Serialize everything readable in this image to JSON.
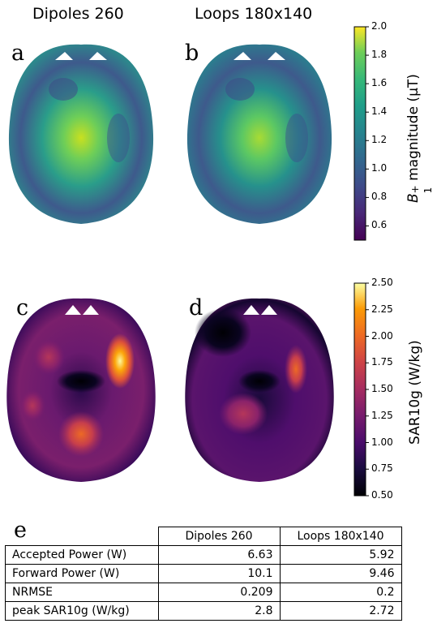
{
  "columns": [
    "Dipoles 260",
    "Loops 180x140"
  ],
  "panel_letters": [
    "a",
    "b",
    "c",
    "d",
    "e"
  ],
  "colorbars": {
    "b1": {
      "label_prefix": "B",
      "label_sub": "1",
      "label_sup": "+",
      "label_suffix": " magnitude (µT)",
      "ticks": [
        "2.0",
        "1.8",
        "1.6",
        "1.4",
        "1.2",
        "1.0",
        "0.8",
        "0.6"
      ],
      "colormap": "viridis",
      "range": [
        0.5,
        2.0
      ]
    },
    "sar": {
      "label": "SAR10g (W/kg)",
      "ticks": [
        "2.50",
        "2.25",
        "2.00",
        "1.75",
        "1.50",
        "1.25",
        "1.00",
        "0.75",
        "0.50"
      ],
      "colormap": "inferno",
      "range": [
        0.5,
        2.5
      ]
    }
  },
  "table": {
    "headers": [
      "Dipoles 260",
      "Loops 180x140"
    ],
    "rows": [
      {
        "label": "Accepted Power (W)",
        "v1": "6.63",
        "v2": "5.92"
      },
      {
        "label": "Forward Power (W)",
        "v1": "10.1",
        "v2": "9.46"
      },
      {
        "label": "NRMSE",
        "v1": "0.209",
        "v2": "0.2"
      },
      {
        "label": "peak SAR10g (W/kg)",
        "v1": "2.8",
        "v2": "2.72"
      }
    ]
  }
}
